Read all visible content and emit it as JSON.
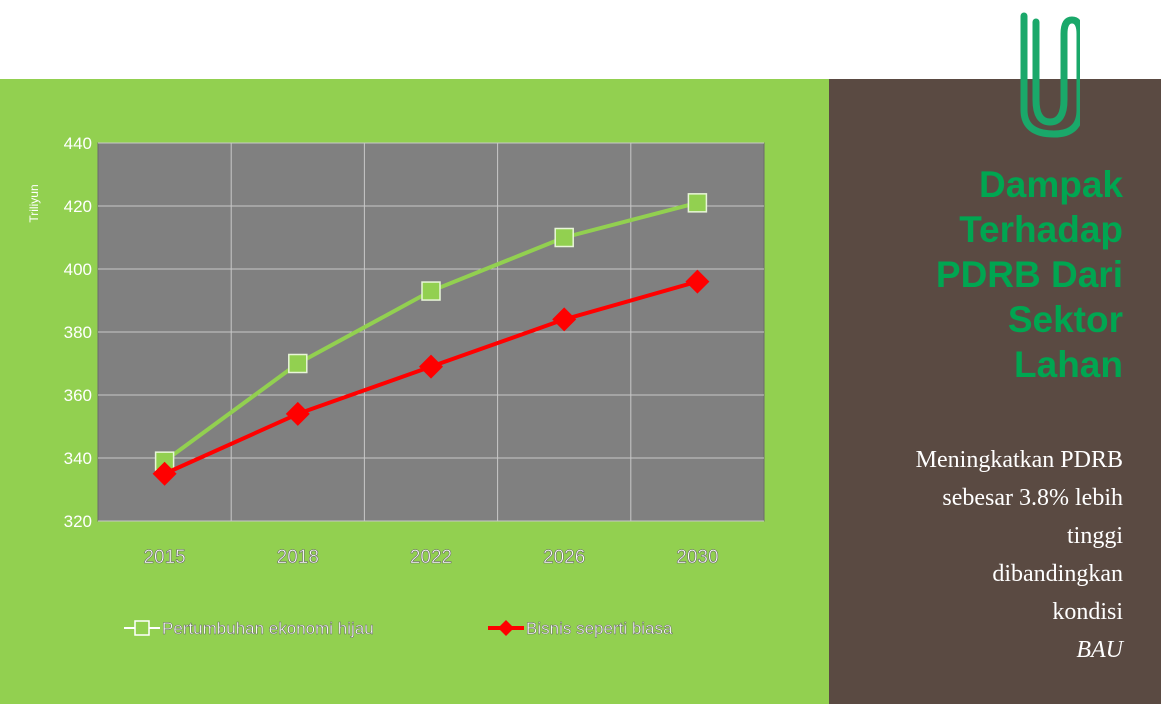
{
  "chart_data": {
    "type": "line",
    "title": "",
    "xlabel": "",
    "ylabel": "Triliyun",
    "categories": [
      "2015",
      "2018",
      "2022",
      "2026",
      "2030"
    ],
    "ylim": [
      320,
      440
    ],
    "yticks": [
      320,
      340,
      360,
      380,
      400,
      420,
      440
    ],
    "grid": true,
    "legend_position": "bottom",
    "series": [
      {
        "name": "Pertumbuhan ekonomi hijau",
        "values": [
          339,
          370,
          393,
          410,
          421
        ],
        "color": "#92d050",
        "marker": "square"
      },
      {
        "name": "Bisnis seperti biasa",
        "values": [
          335,
          354,
          369,
          384,
          396
        ],
        "color": "#ff0000",
        "marker": "diamond"
      }
    ]
  },
  "colors": {
    "slide_green": "#92d050",
    "slide_brown": "#5a4a42",
    "title_green": "#00a651",
    "plot_gray": "#808080"
  },
  "icons": {
    "clip": "paperclip-icon"
  },
  "sidebar": {
    "title_lines": [
      "Dampak",
      "Terhadap",
      "PDRB Dari",
      "Sektor",
      "Lahan"
    ],
    "body_lines": [
      "Meningkatkan PDRB",
      "sebesar 3.8% lebih",
      "tinggi",
      "dibandingkan"
    ],
    "body_last_prefix": "kondisi ",
    "body_last_italic": "BAU"
  }
}
